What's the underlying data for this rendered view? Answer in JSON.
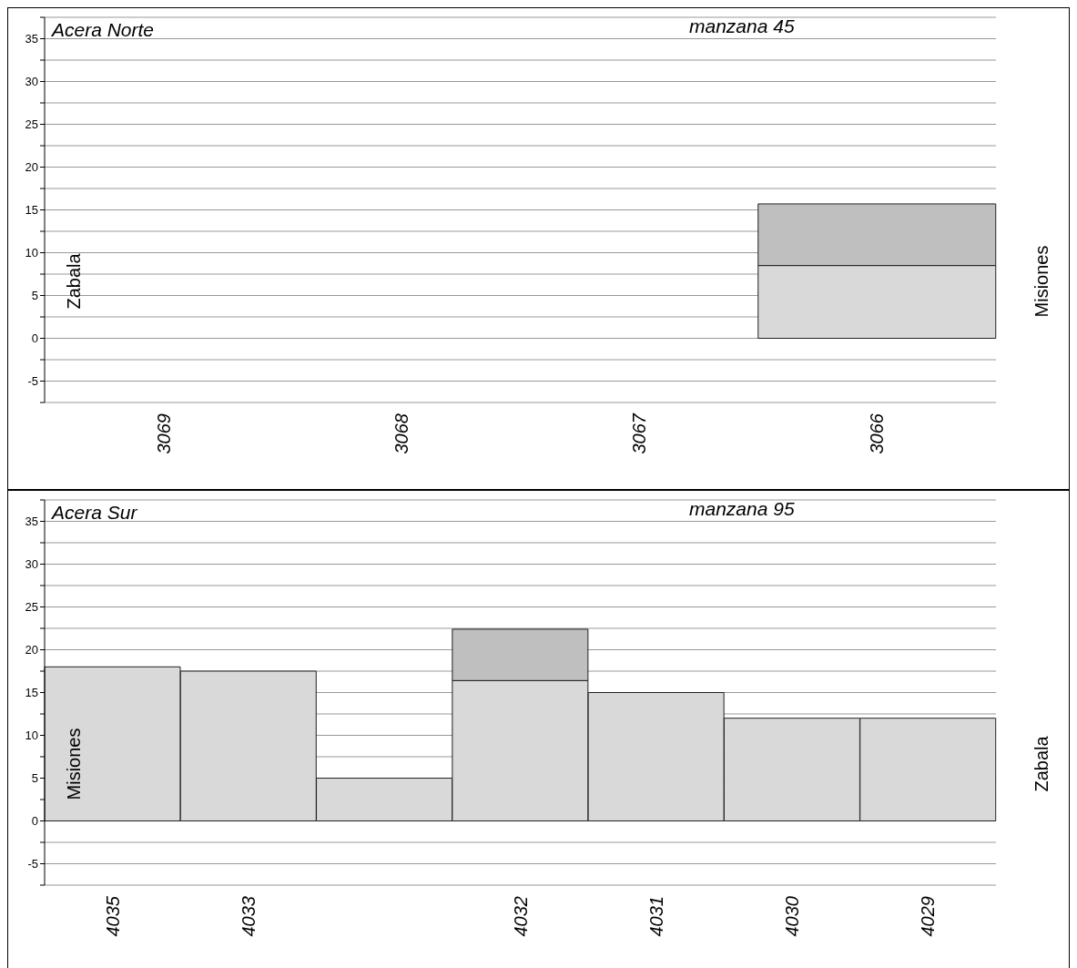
{
  "chart_data": [
    {
      "type": "bar",
      "title": "Acera Norte",
      "subtitle": "manzana 45",
      "annotations": [
        "Zabala",
        "Misiones"
      ],
      "categories": [
        "3069",
        "3068",
        "3067",
        "3066"
      ],
      "stacked": true,
      "series": [
        {
          "color": "#d9d9d9",
          "values": [
            0,
            0,
            0,
            8.5
          ]
        },
        {
          "color": "#bfbfbf",
          "values": [
            0,
            0,
            0,
            7.2
          ]
        }
      ],
      "ylim": [
        -7.5,
        37.5
      ],
      "yticks": [
        {
          "value": -7.5,
          "label": null
        },
        -5,
        {
          "value": -2.5,
          "label": null
        },
        0,
        {
          "value": 2.5,
          "label": null
        },
        5,
        {
          "value": 7.5,
          "label": null
        },
        10,
        {
          "value": 12.5,
          "label": null
        },
        15,
        {
          "value": 17.5,
          "label": null
        },
        20,
        {
          "value": 22.5,
          "label": null
        },
        25,
        {
          "value": 27.5,
          "label": null
        },
        30,
        {
          "value": 32.5,
          "label": null
        },
        35,
        {
          "value": 37.5,
          "label": null
        }
      ],
      "grid": "y",
      "legend": false
    },
    {
      "type": "bar",
      "title": "Acera Sur",
      "subtitle": "manzana 95",
      "annotations": [
        "Misiones",
        "Zabala"
      ],
      "categories": [
        "4035",
        "4033",
        null,
        "4032",
        "4031",
        "4030",
        "4029"
      ],
      "stacked": true,
      "series": [
        {
          "color": "#d9d9d9",
          "values": [
            18,
            17.5,
            5,
            16.4,
            15,
            12,
            12
          ]
        },
        {
          "color": "#bfbfbf",
          "values": [
            0,
            0,
            0,
            6,
            0,
            0,
            0
          ]
        }
      ],
      "ylim": [
        -7.5,
        37.5
      ],
      "yticks": [
        {
          "value": -7.5,
          "label": null
        },
        -5,
        {
          "value": -2.5,
          "label": null
        },
        0,
        {
          "value": 2.5,
          "label": null
        },
        5,
        {
          "value": 7.5,
          "label": null
        },
        10,
        {
          "value": 12.5,
          "label": null
        },
        15,
        {
          "value": 17.5,
          "label": null
        },
        20,
        {
          "value": 22.5,
          "label": null
        },
        25,
        {
          "value": 27.5,
          "label": null
        },
        30,
        {
          "value": 32.5,
          "label": null
        },
        35,
        {
          "value": 37.5,
          "label": null
        }
      ],
      "grid": "y",
      "legend": false
    }
  ]
}
